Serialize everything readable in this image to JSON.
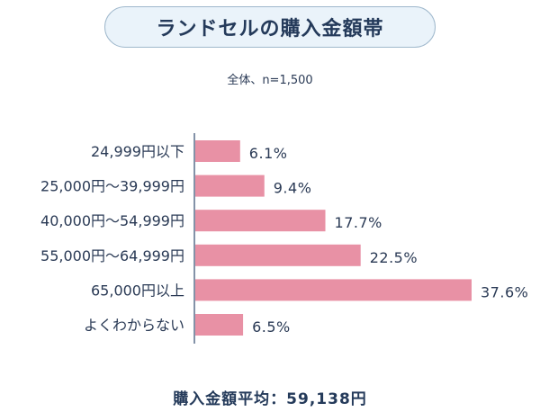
{
  "header": {
    "title": "ランドセルの購入金額帯",
    "subtitle": "全体、n=1,500"
  },
  "footer": {
    "average_text": "購入金額平均：59,138円"
  },
  "colors": {
    "bar": "#e891a5",
    "axis": "#5a6e8c",
    "text": "#2a3a55",
    "pill_bg": "#eaf3fa",
    "pill_border": "#9fb8cc"
  },
  "chart_data": {
    "type": "bar",
    "orientation": "horizontal",
    "title": "ランドセルの購入金額帯",
    "subtitle": "全体、n=1,500",
    "categories": [
      "24,999円以下",
      "25,000円～39,999円",
      "40,000円～54,999円",
      "55,000円～64,999円",
      "65,000円以上",
      "よくわからない"
    ],
    "values": [
      6.1,
      9.4,
      17.7,
      22.5,
      37.6,
      6.5
    ],
    "value_labels": [
      "6.1%",
      "9.4%",
      "17.7%",
      "22.5%",
      "37.6%",
      "6.5%"
    ],
    "unit": "%",
    "xlim": [
      0,
      40
    ],
    "grid": false,
    "legend": "none"
  }
}
